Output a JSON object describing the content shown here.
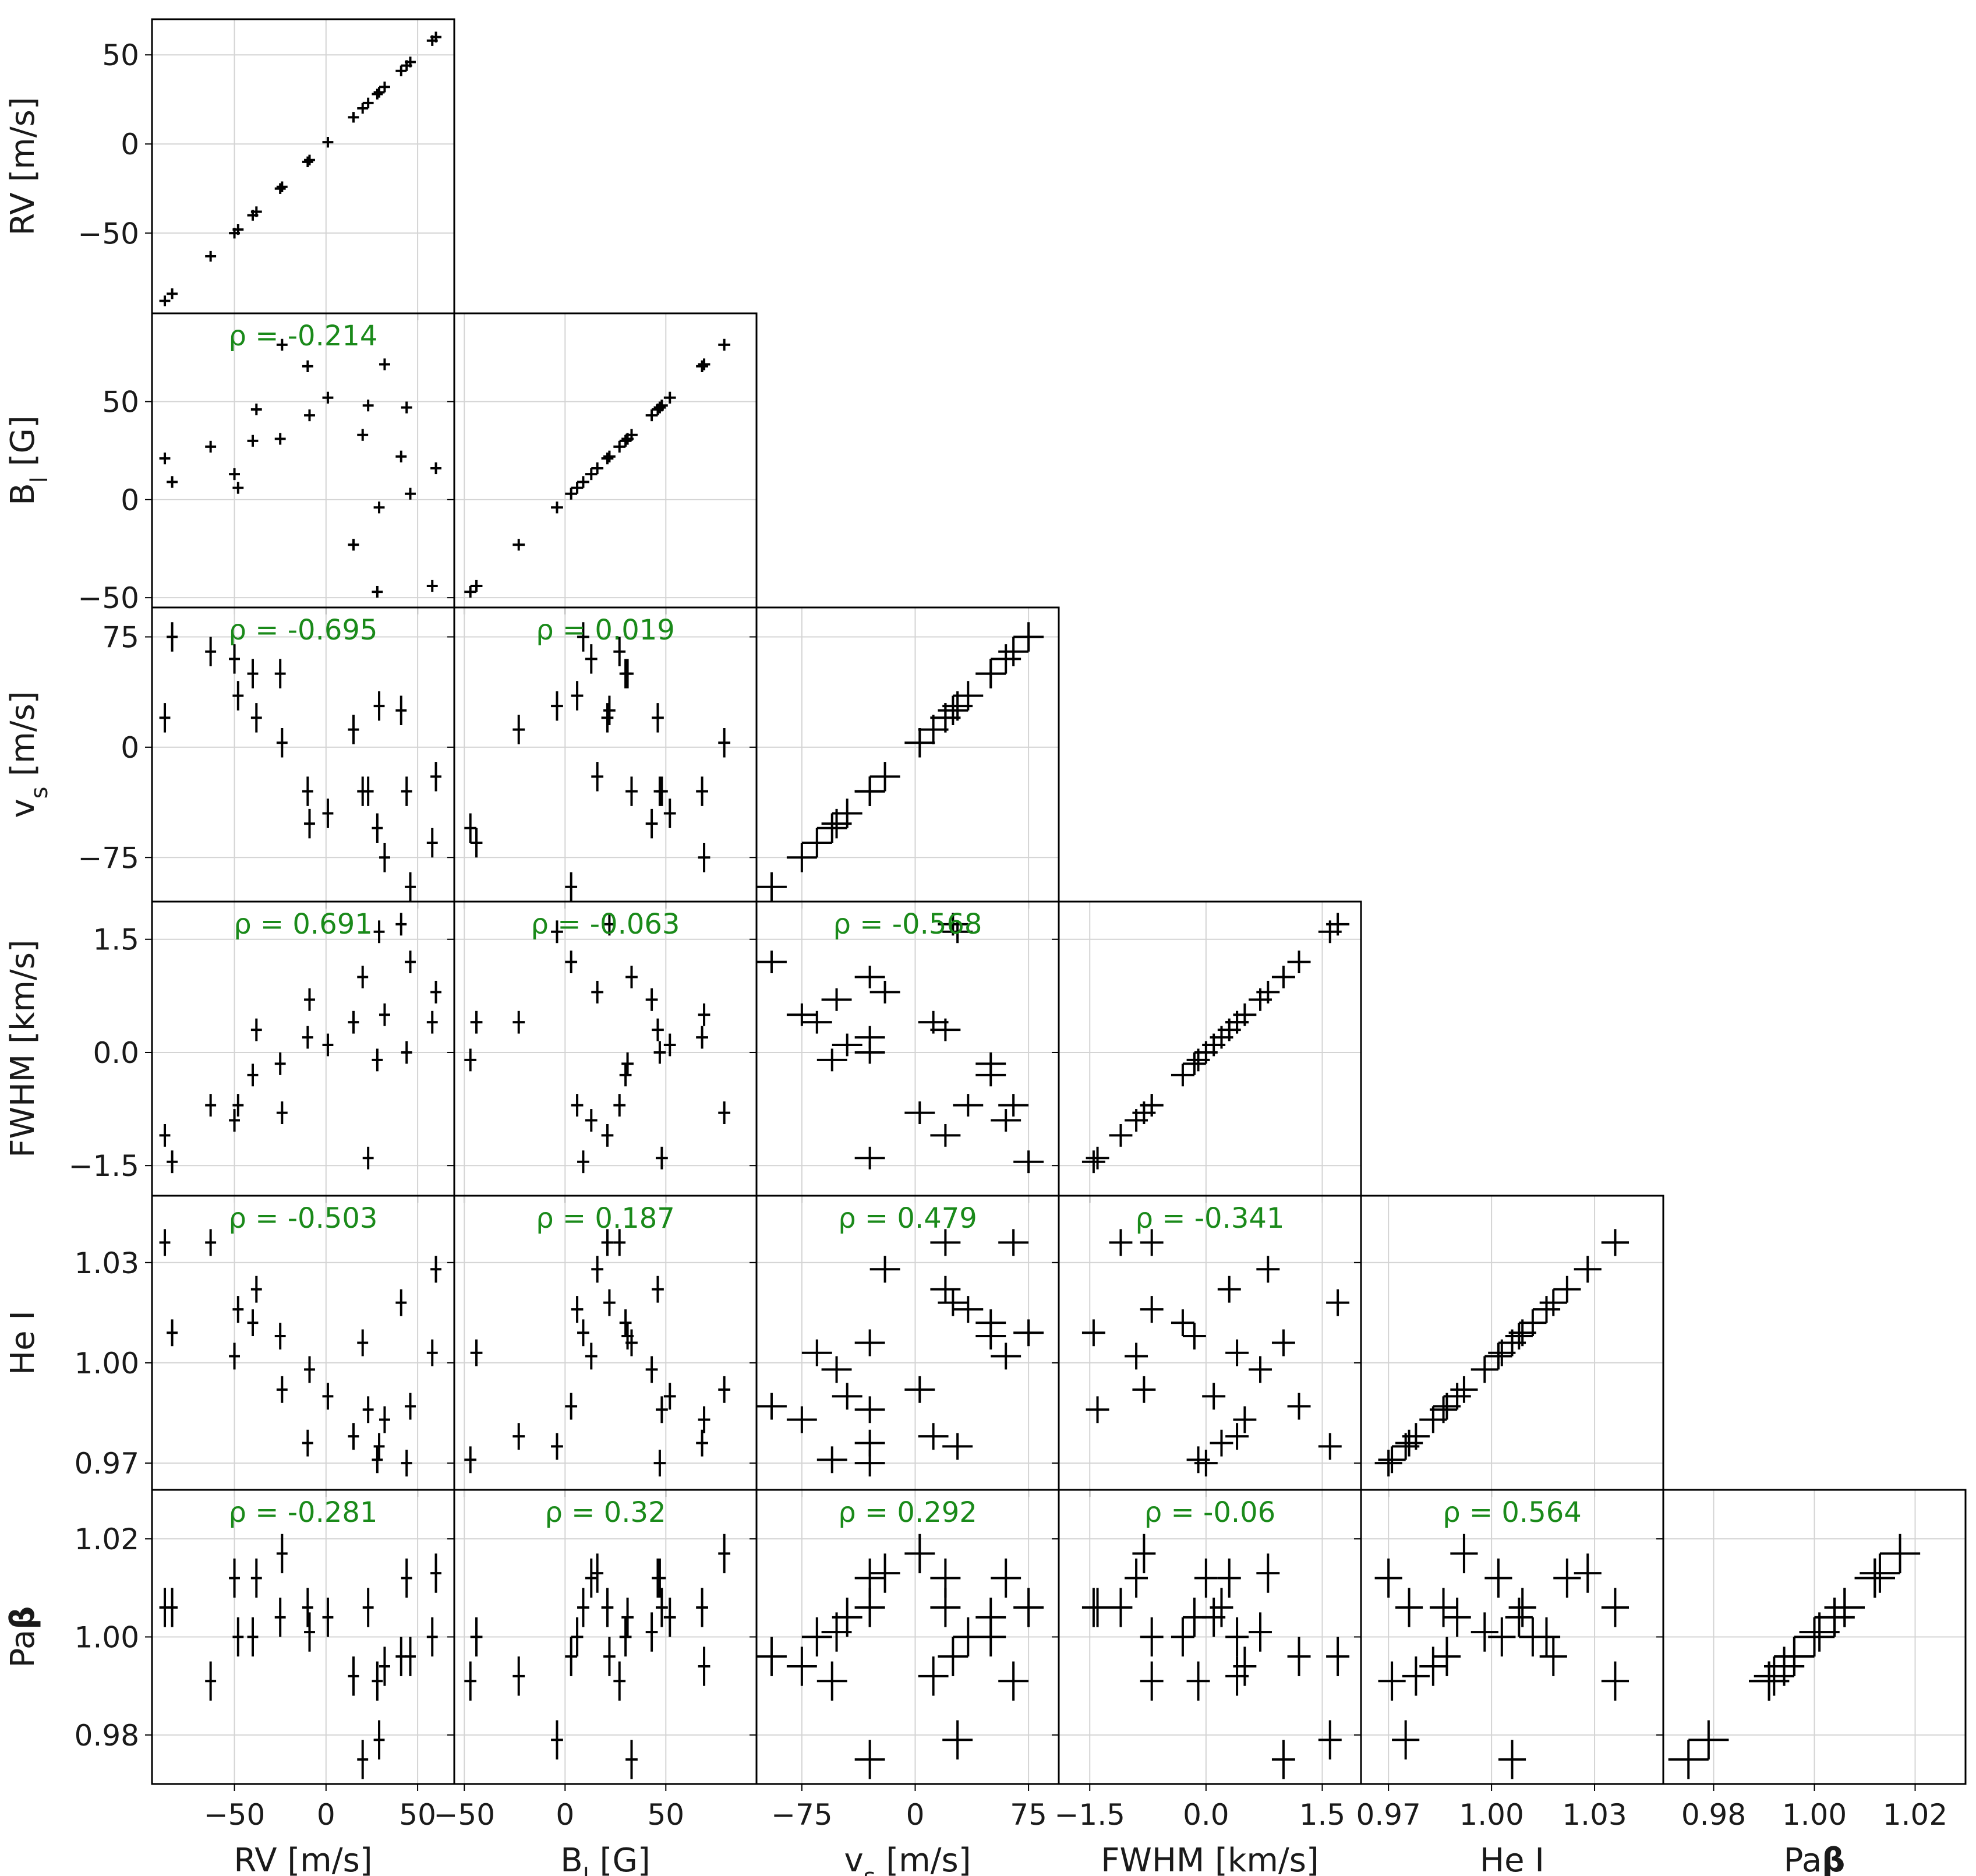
{
  "chart_data": {
    "type": "scatter",
    "variables": [
      {
        "key": "RV",
        "label": "RV [m/s]",
        "ticks": [
          {
            "v": -50,
            "t": "−50"
          },
          {
            "v": 0,
            "t": "0"
          },
          {
            "v": 50,
            "t": "50"
          }
        ],
        "err": 3,
        "values": [
          -88,
          -84,
          -63,
          -50,
          -48,
          -40,
          -38,
          -25,
          -24,
          -10,
          -9,
          1,
          15,
          20,
          23,
          28,
          29,
          32,
          41,
          44,
          46,
          58,
          60
        ]
      },
      {
        "key": "BI",
        "label": "B_l [G]",
        "ticks": [
          {
            "v": -50,
            "t": "−50"
          },
          {
            "v": 0,
            "t": "0"
          },
          {
            "v": 50,
            "t": "50"
          }
        ],
        "err": 3,
        "values": [
          21,
          9,
          27,
          13,
          6,
          30,
          46,
          31,
          79,
          68,
          43,
          52,
          -23,
          33,
          48,
          -47,
          -4,
          69,
          22,
          47,
          3,
          -44,
          16
        ]
      },
      {
        "key": "vs",
        "label": "v_s [m/s]",
        "ticks": [
          {
            "v": -75,
            "t": "−75"
          },
          {
            "v": 0,
            "t": "0"
          },
          {
            "v": 75,
            "t": "75"
          }
        ],
        "err": 10,
        "values": [
          20,
          75,
          65,
          60,
          35,
          50,
          20,
          50,
          3,
          -30,
          -52,
          -45,
          12,
          -30,
          -30,
          -55,
          28,
          -75,
          25,
          -30,
          -95,
          -65,
          -20
        ]
      },
      {
        "key": "FWHM",
        "label": "FWHM [km/s]",
        "ticks": [
          {
            "v": -1.5,
            "t": "−1.5"
          },
          {
            "v": 0,
            "t": "0.0"
          },
          {
            "v": 1.5,
            "t": "1.5"
          }
        ],
        "err": 0.15,
        "values": [
          -1.1,
          -1.45,
          -0.7,
          -0.9,
          -0.7,
          -0.3,
          0.3,
          -0.15,
          -0.8,
          0.2,
          0.7,
          0.1,
          0.4,
          1.0,
          -1.4,
          -0.1,
          1.6,
          0.5,
          1.7,
          0,
          1.2,
          0.4,
          0.8
        ]
      },
      {
        "key": "HeI",
        "label": "He I",
        "ticks": [
          {
            "v": 0.97,
            "t": "0.97"
          },
          {
            "v": 1.0,
            "t": "1.00"
          },
          {
            "v": 1.03,
            "t": "1.03"
          }
        ],
        "err": 0.004,
        "values": [
          1.036,
          1.009,
          1.036,
          1.002,
          1.016,
          1.012,
          1.022,
          1.008,
          0.992,
          0.976,
          0.998,
          0.99,
          0.978,
          1.006,
          0.986,
          0.971,
          0.975,
          0.983,
          1.018,
          0.97,
          0.987,
          1.003,
          1.028
        ]
      },
      {
        "key": "Pab",
        "label": "Paβ",
        "ticks": [
          {
            "v": 0.98,
            "t": "0.98"
          },
          {
            "v": 1.0,
            "t": "1.00"
          },
          {
            "v": 1.02,
            "t": "1.02"
          }
        ],
        "err": 0.004,
        "values": [
          1.006,
          1.006,
          0.991,
          1.012,
          1.0,
          1.0,
          1.012,
          1.004,
          1.017,
          1.006,
          1.001,
          1.004,
          0.992,
          0.975,
          1.006,
          0.991,
          0.979,
          0.994,
          0.996,
          1.012,
          0.996,
          1.0,
          1.013
        ]
      }
    ],
    "panel_ranges": [
      [
        -95,
        70
      ],
      [
        -55,
        95
      ],
      [
        -105,
        95
      ],
      [
        -1.9,
        2.0
      ],
      [
        0.962,
        1.05
      ],
      [
        0.97,
        1.03
      ]
    ],
    "rho": [
      [
        null,
        null,
        null,
        null,
        null
      ],
      [
        "ρ = -0.214",
        null,
        null,
        null,
        null
      ],
      [
        "ρ = -0.695",
        "ρ = 0.019",
        null,
        null,
        null
      ],
      [
        "ρ = 0.691",
        "ρ = -0.063",
        "ρ = -0.568",
        null,
        null
      ],
      [
        "ρ = -0.503",
        "ρ = 0.187",
        "ρ = 0.479",
        "ρ = -0.341",
        null
      ],
      [
        "ρ = -0.281",
        "ρ = 0.32",
        "ρ = 0.292",
        "ρ = -0.06",
        "ρ = 0.564"
      ]
    ],
    "grid": true,
    "colors": {
      "points": "#000000",
      "rho": "#1a8a1a",
      "grid": "#d4d4d4",
      "frame": "#000000"
    }
  }
}
